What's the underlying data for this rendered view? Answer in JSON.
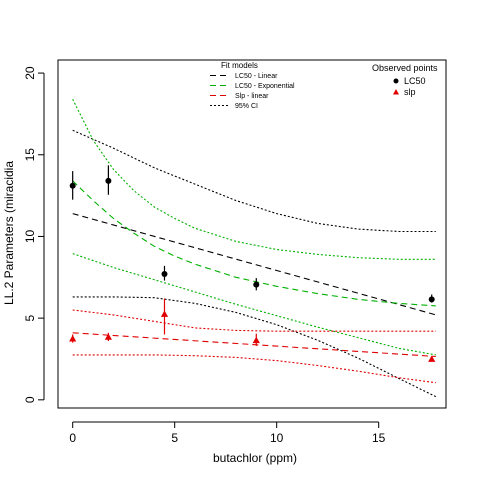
{
  "chart_data": {
    "type": "scatter",
    "xlabel": "butachlor (ppm)",
    "ylabel": "LL.2 Parameters (miracidia",
    "xlim": [
      0,
      18
    ],
    "ylim": [
      0,
      20
    ],
    "xticks": [
      "0",
      "5",
      "10",
      "15"
    ],
    "yticks": [
      "0",
      "5",
      "10",
      "15",
      "20"
    ],
    "grid": false,
    "colors": {
      "lc50": "#000000",
      "slp": "#e00000",
      "exp": "#00b000"
    },
    "legend_models": {
      "title": "Fit models",
      "position": "top-center",
      "entries": [
        {
          "label": "LC50 - Linear",
          "color": "#000000",
          "dash": "dashed"
        },
        {
          "label": "LC50 - Exponential",
          "color": "#00b000",
          "dash": "dashed"
        },
        {
          "label": "Slp - linear",
          "color": "#e00000",
          "dash": "dashed"
        },
        {
          "label": "95% CI",
          "color": "#000000",
          "dash": "dotted"
        }
      ]
    },
    "legend_points": {
      "title": "Observed points",
      "position": "top-right",
      "entries": [
        {
          "label": "LC50",
          "color": "#000000",
          "marker": "circle"
        },
        {
          "label": "slp",
          "color": "#e00000",
          "marker": "triangle"
        }
      ]
    },
    "points": {
      "lc50": {
        "x": [
          0,
          1.75,
          4.5,
          9,
          17.6
        ],
        "y": [
          13.1,
          13.4,
          7.7,
          7.05,
          6.15
        ],
        "err_low": [
          12.25,
          12.55,
          7.3,
          6.7,
          5.95
        ],
        "err_high": [
          14.0,
          14.35,
          8.2,
          7.45,
          6.45
        ]
      },
      "slp": {
        "x": [
          0,
          1.75,
          4.5,
          9,
          17.6
        ],
        "y": [
          3.75,
          3.85,
          5.25,
          3.65,
          2.5
        ],
        "err_low": [
          3.5,
          3.6,
          4.0,
          3.3,
          2.35
        ],
        "err_high": [
          4.0,
          4.1,
          6.2,
          4.05,
          2.65
        ]
      }
    },
    "curves": {
      "lc50_linear": {
        "x": [
          0,
          17.8
        ],
        "y": [
          11.4,
          5.2
        ]
      },
      "lc50_linear_ci_upper": {
        "x": [
          0,
          2,
          4,
          6,
          8,
          10,
          12,
          14,
          16,
          17.8
        ],
        "y": [
          16.5,
          15.4,
          14.2,
          13.2,
          12.2,
          11.4,
          10.8,
          10.45,
          10.3,
          10.3
        ]
      },
      "lc50_linear_ci_lower": {
        "x": [
          0,
          2,
          4,
          6,
          8,
          10,
          12,
          14,
          16,
          17.8
        ],
        "y": [
          6.3,
          6.3,
          6.25,
          5.9,
          5.35,
          4.6,
          3.65,
          2.55,
          1.3,
          0.2
        ]
      },
      "lc50_exponential": {
        "x": [
          0,
          1,
          2,
          3,
          4,
          5,
          6,
          8,
          10,
          12,
          14,
          16,
          17.8
        ],
        "y": [
          13.4,
          12.2,
          11.1,
          10.2,
          9.4,
          8.8,
          8.3,
          7.5,
          6.95,
          6.5,
          6.15,
          5.9,
          5.75
        ]
      },
      "lc50_exponential_ci_upper": {
        "x": [
          0,
          1,
          2,
          3,
          4,
          5,
          6,
          8,
          10,
          12,
          14,
          16,
          17.8
        ],
        "y": [
          18.4,
          15.9,
          14.1,
          12.8,
          11.8,
          11.1,
          10.5,
          9.7,
          9.2,
          8.9,
          8.7,
          8.6,
          8.6
        ]
      },
      "lc50_exponential_ci_lower": {
        "x": [
          0,
          2,
          4,
          6,
          8,
          10,
          12,
          14,
          16,
          17.8
        ],
        "y": [
          8.95,
          8.1,
          7.35,
          6.6,
          5.85,
          5.15,
          4.45,
          3.8,
          3.15,
          2.75
        ]
      },
      "slp_linear": {
        "x": [
          0,
          17.8
        ],
        "y": [
          4.1,
          2.65
        ]
      },
      "slp_linear_ci_upper": {
        "x": [
          0,
          2,
          4,
          6,
          8,
          10,
          12,
          14,
          16,
          17.8
        ],
        "y": [
          5.5,
          5.2,
          4.8,
          4.4,
          4.25,
          4.2,
          4.2,
          4.2,
          4.2,
          4.2
        ]
      },
      "slp_linear_ci_lower": {
        "x": [
          0,
          2,
          4,
          6,
          8,
          10,
          12,
          14,
          16,
          17.8
        ],
        "y": [
          2.75,
          2.75,
          2.75,
          2.7,
          2.6,
          2.4,
          2.1,
          1.75,
          1.35,
          1.05
        ]
      }
    }
  }
}
